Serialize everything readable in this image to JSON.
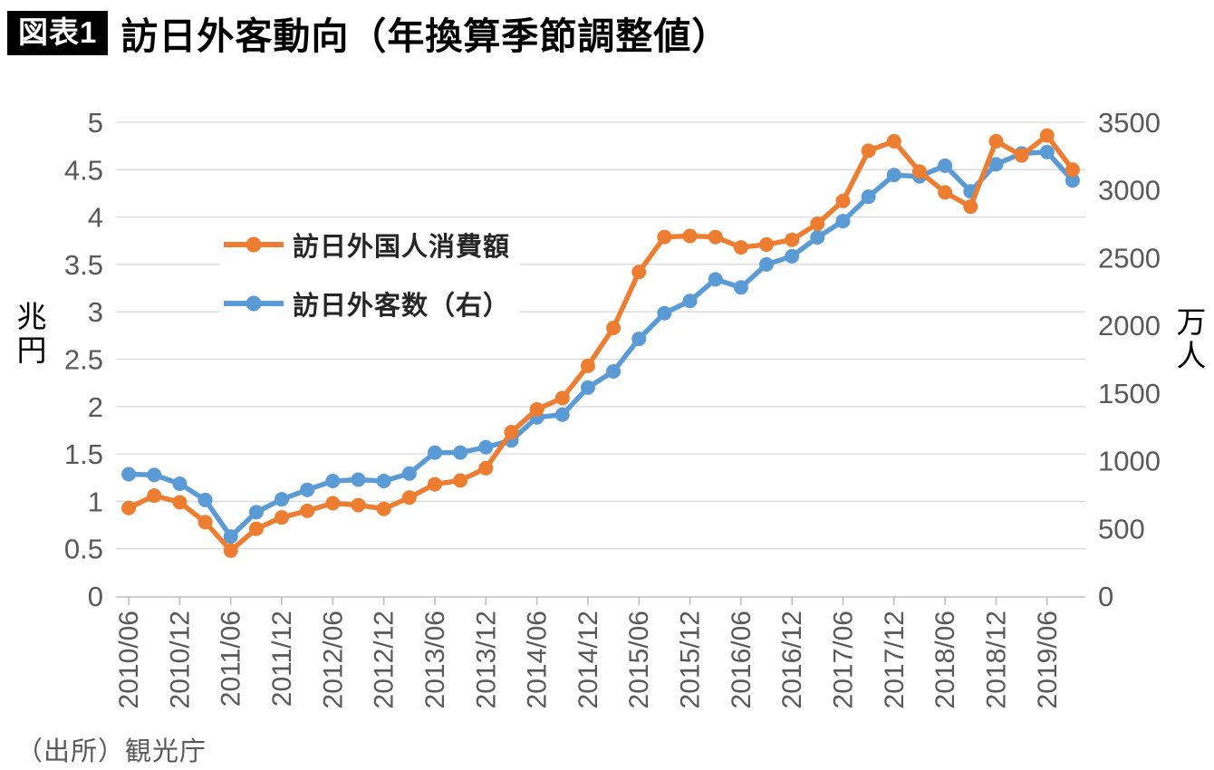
{
  "header": {
    "badge": "図表1",
    "title": "訪日外客動向（年換算季節調整値）"
  },
  "footer": {
    "source": "（出所）観光庁"
  },
  "colors": {
    "consumption": "#ED7D31",
    "visitors": "#5B9BD5",
    "gridline": "#D9D9D9",
    "axis_line": "#BFBFBF",
    "tick_text": "#595959"
  },
  "chart_data": {
    "type": "line",
    "x": [
      "2010/06",
      "2010/09",
      "2010/12",
      "2011/03",
      "2011/06",
      "2011/09",
      "2011/12",
      "2012/03",
      "2012/06",
      "2012/09",
      "2012/12",
      "2013/03",
      "2013/06",
      "2013/09",
      "2013/12",
      "2014/03",
      "2014/06",
      "2014/09",
      "2014/12",
      "2015/03",
      "2015/06",
      "2015/09",
      "2015/12",
      "2016/03",
      "2016/06",
      "2016/09",
      "2016/12",
      "2017/03",
      "2017/06",
      "2017/09",
      "2017/12",
      "2018/03",
      "2018/06",
      "2018/09",
      "2018/12",
      "2019/03",
      "2019/06",
      "2019/09"
    ],
    "x_tick_every": 2,
    "series": [
      {
        "name": "訪日外国人消費額",
        "axis": "left",
        "color": "#ED7D31",
        "values": [
          0.93,
          1.06,
          0.99,
          0.78,
          0.48,
          0.71,
          0.83,
          0.9,
          0.98,
          0.96,
          0.92,
          1.04,
          1.18,
          1.22,
          1.35,
          1.73,
          1.97,
          2.09,
          2.43,
          2.83,
          3.42,
          3.79,
          3.8,
          3.79,
          3.68,
          3.71,
          3.76,
          3.93,
          4.17,
          4.7,
          4.8,
          4.48,
          4.26,
          4.11,
          4.8,
          4.65,
          4.86,
          4.5
        ]
      },
      {
        "name": "訪日外客数（右）",
        "axis": "right",
        "color": "#5B9BD5",
        "values": [
          900,
          895,
          830,
          710,
          440,
          620,
          715,
          785,
          850,
          860,
          850,
          905,
          1060,
          1060,
          1100,
          1150,
          1320,
          1340,
          1540,
          1660,
          1900,
          2090,
          2180,
          2340,
          2280,
          2450,
          2510,
          2650,
          2770,
          2950,
          3110,
          3100,
          3180,
          2990,
          3190,
          3270,
          3280,
          3070
        ]
      }
    ],
    "left_axis": {
      "unit": "兆円",
      "min": 0,
      "max": 5,
      "ticks": [
        "5",
        "4.5",
        "4",
        "3.5",
        "3",
        "2.5",
        "2",
        "1.5",
        "1",
        "0.5",
        "0"
      ]
    },
    "right_axis": {
      "unit": "万人",
      "min": 0,
      "max": 3500,
      "ticks": [
        "3500",
        "3000",
        "2500",
        "2000",
        "1500",
        "1000",
        "500",
        "0"
      ]
    },
    "grid": true,
    "legend_position": "upper-left-inside",
    "title": "訪日外客動向（年換算季節調整値）"
  }
}
